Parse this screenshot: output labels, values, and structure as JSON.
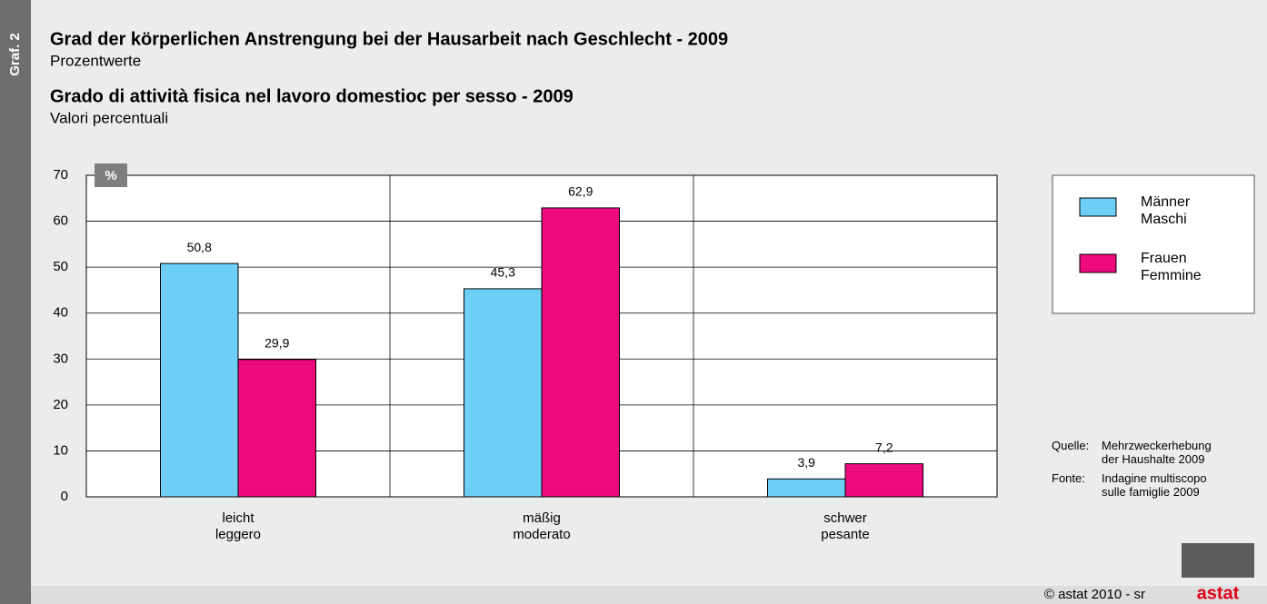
{
  "chart_data": {
    "type": "bar",
    "figure_label": "Graf. 2",
    "title": "Grad der körperlichen Anstrengung bei der Hausarbeit nach Geschlecht - 2009",
    "subtitle": "Prozentwerte",
    "title2": "Grado di attività fisica nel lavoro domestioc per sesso - 2009",
    "subtitle2": "Valori percentuali",
    "y_label": "%",
    "categories": [
      "leicht\nleggero",
      "mäßig\nmoderato",
      "schwer\npesante"
    ],
    "series": [
      {
        "name": "Männer\nMaschi",
        "color": "#6dcff6",
        "values": [
          50.8,
          45.3,
          3.9
        ],
        "value_labels": [
          "50,8",
          "45,3",
          "3,9"
        ]
      },
      {
        "name": "Frauen\nFemmine",
        "color": "#ec0a7d",
        "values": [
          29.9,
          62.9,
          7.2
        ],
        "value_labels": [
          "29,9",
          "62,9",
          "7,2"
        ]
      }
    ],
    "ylim": [
      0,
      70
    ],
    "yticks": [
      0,
      10,
      20,
      30,
      40,
      50,
      60,
      70
    ],
    "grid": true,
    "source": [
      {
        "label": "Quelle:",
        "text": "Mehrzweckerhebung\nder Haushalte 2009"
      },
      {
        "label": "Fonte:",
        "text": "Indagine multiscopo\nsulle famiglie 2009"
      }
    ],
    "footer": "© astat 2010 - sr",
    "logo": "astat"
  }
}
